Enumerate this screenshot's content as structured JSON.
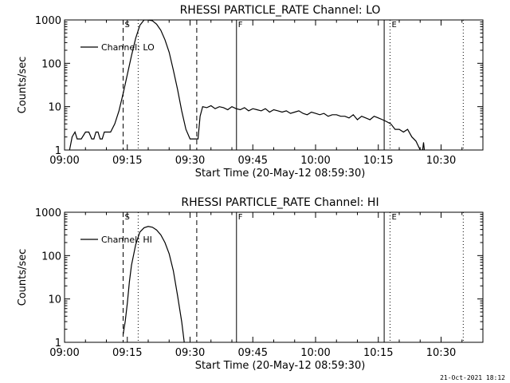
{
  "footer_timestamp": "21-Oct-2021 18:12",
  "x_axis": {
    "start": "09:00",
    "end": "10:40",
    "tick_labels": [
      "09:00",
      "09:15",
      "09:30",
      "09:45",
      "10:00",
      "10:15",
      "10:30"
    ],
    "tick_values_min": [
      0,
      15,
      30,
      45,
      60,
      75,
      90
    ],
    "xlabel": "Start Time (20-May-12 08:59:30)"
  },
  "y_axis": {
    "scale": "log",
    "ylim": [
      1,
      1000
    ],
    "tick_labels": [
      "1",
      "10",
      "100",
      "1000"
    ],
    "tick_values": [
      1,
      10,
      100,
      1000
    ],
    "ylabel": "Counts/sec"
  },
  "markers": [
    {
      "label": "S",
      "x_min": 14.0,
      "style": "dashed"
    },
    {
      "label": "",
      "x_min": 17.6,
      "style": "dotted"
    },
    {
      "label": "",
      "x_min": 31.6,
      "style": "dashed"
    },
    {
      "label": "F",
      "x_min": 41.1,
      "style": "solid"
    },
    {
      "label": "",
      "x_min": 76.4,
      "style": "solid"
    },
    {
      "label": "E",
      "x_min": 77.8,
      "style": "dotted"
    },
    {
      "label": "",
      "x_min": 95.3,
      "style": "dotted"
    }
  ],
  "chart_data": [
    {
      "type": "line",
      "title": "RHESSI PARTICLE_RATE Channel: LO",
      "xlabel": "Start Time (20-May-12 08:59:30)",
      "ylabel": "Counts/sec",
      "yscale": "log",
      "ylim": [
        1,
        1000
      ],
      "legend": "top-left",
      "grid": false,
      "series": [
        {
          "name": "Channel: LO",
          "x_min": [
            1.2,
            1.8,
            2.5,
            3.0,
            4.0,
            5.0,
            5.8,
            6.5,
            7.0,
            7.5,
            8.0,
            8.5,
            9.0,
            9.5,
            10.0,
            11.0,
            12.0,
            13.0,
            14.0,
            15.0,
            16.0,
            17.0,
            18.0,
            19.0,
            20.0,
            21.0,
            22.0,
            23.0,
            24.0,
            25.0,
            26.0,
            27.0,
            28.0,
            29.0,
            30.0,
            31.0,
            31.9,
            32.4,
            33.0,
            34.0,
            35.0,
            36.0,
            37.0,
            38.0,
            39.0,
            40.0,
            41.0,
            42.0,
            43.0,
            44.0,
            45.0,
            46.0,
            47.0,
            48.0,
            49.0,
            50.0,
            51.0,
            52.0,
            53.0,
            54.0,
            55.0,
            56.0,
            57.0,
            58.0,
            59.0,
            60.0,
            61.0,
            62.0,
            63.0,
            64.0,
            65.0,
            66.0,
            67.0,
            68.0,
            69.0,
            70.0,
            71.0,
            72.0,
            73.0,
            74.0,
            75.0,
            76.0,
            77.0,
            78.0,
            79.0,
            80.0,
            81.0,
            82.0,
            83.0,
            84.0,
            85.0,
            86.0
          ],
          "values": [
            1.0,
            2.0,
            2.6,
            1.8,
            1.8,
            2.6,
            2.6,
            1.8,
            1.8,
            2.6,
            2.6,
            1.8,
            1.8,
            2.6,
            2.6,
            2.6,
            4.0,
            8.0,
            20.0,
            55.0,
            150.0,
            380.0,
            750.0,
            1000.0,
            1000.0,
            960.0,
            800.0,
            580.0,
            350.0,
            180.0,
            70.0,
            25.0,
            8.0,
            3.0,
            1.8,
            1.8,
            1.8,
            6.0,
            10.0,
            9.5,
            10.5,
            9.0,
            10.0,
            9.5,
            8.5,
            10.0,
            9.0,
            8.5,
            9.5,
            8.0,
            9.0,
            8.5,
            8.0,
            9.0,
            7.5,
            8.5,
            8.0,
            7.5,
            8.0,
            7.0,
            7.5,
            8.0,
            7.0,
            6.5,
            7.5,
            7.0,
            6.5,
            7.0,
            6.0,
            6.5,
            6.5,
            6.0,
            6.0,
            5.5,
            6.5,
            5.0,
            6.0,
            5.5,
            5.0,
            6.0,
            5.5,
            5.0,
            4.5,
            4.0,
            3.0,
            3.0,
            2.6,
            3.0,
            2.0,
            1.6,
            1.0,
            1.0
          ],
          "extra_segment": {
            "x_min": [
              85.6,
              85.8,
              86.0
            ],
            "values": [
              1.0,
              1.5,
              1.0
            ]
          }
        }
      ]
    },
    {
      "type": "line",
      "title": "RHESSI PARTICLE_RATE Channel: HI",
      "xlabel": "Start Time (20-May-12 08:59:30)",
      "ylabel": "Counts/sec",
      "yscale": "log",
      "ylim": [
        1,
        1000
      ],
      "legend": "top-left",
      "grid": false,
      "series": [
        {
          "name": "Channel: HI",
          "x_min": [
            14.0,
            14.5,
            15.0,
            15.5,
            16.0,
            17.0,
            18.0,
            19.0,
            20.0,
            21.0,
            22.0,
            23.0,
            24.0,
            25.0,
            26.0,
            27.0,
            28.0,
            28.6
          ],
          "values": [
            1.5,
            3.0,
            8.0,
            25.0,
            60.0,
            180.0,
            350.0,
            440.0,
            470.0,
            450.0,
            390.0,
            300.0,
            200.0,
            110.0,
            45.0,
            12.0,
            3.0,
            1.0
          ]
        }
      ]
    }
  ]
}
